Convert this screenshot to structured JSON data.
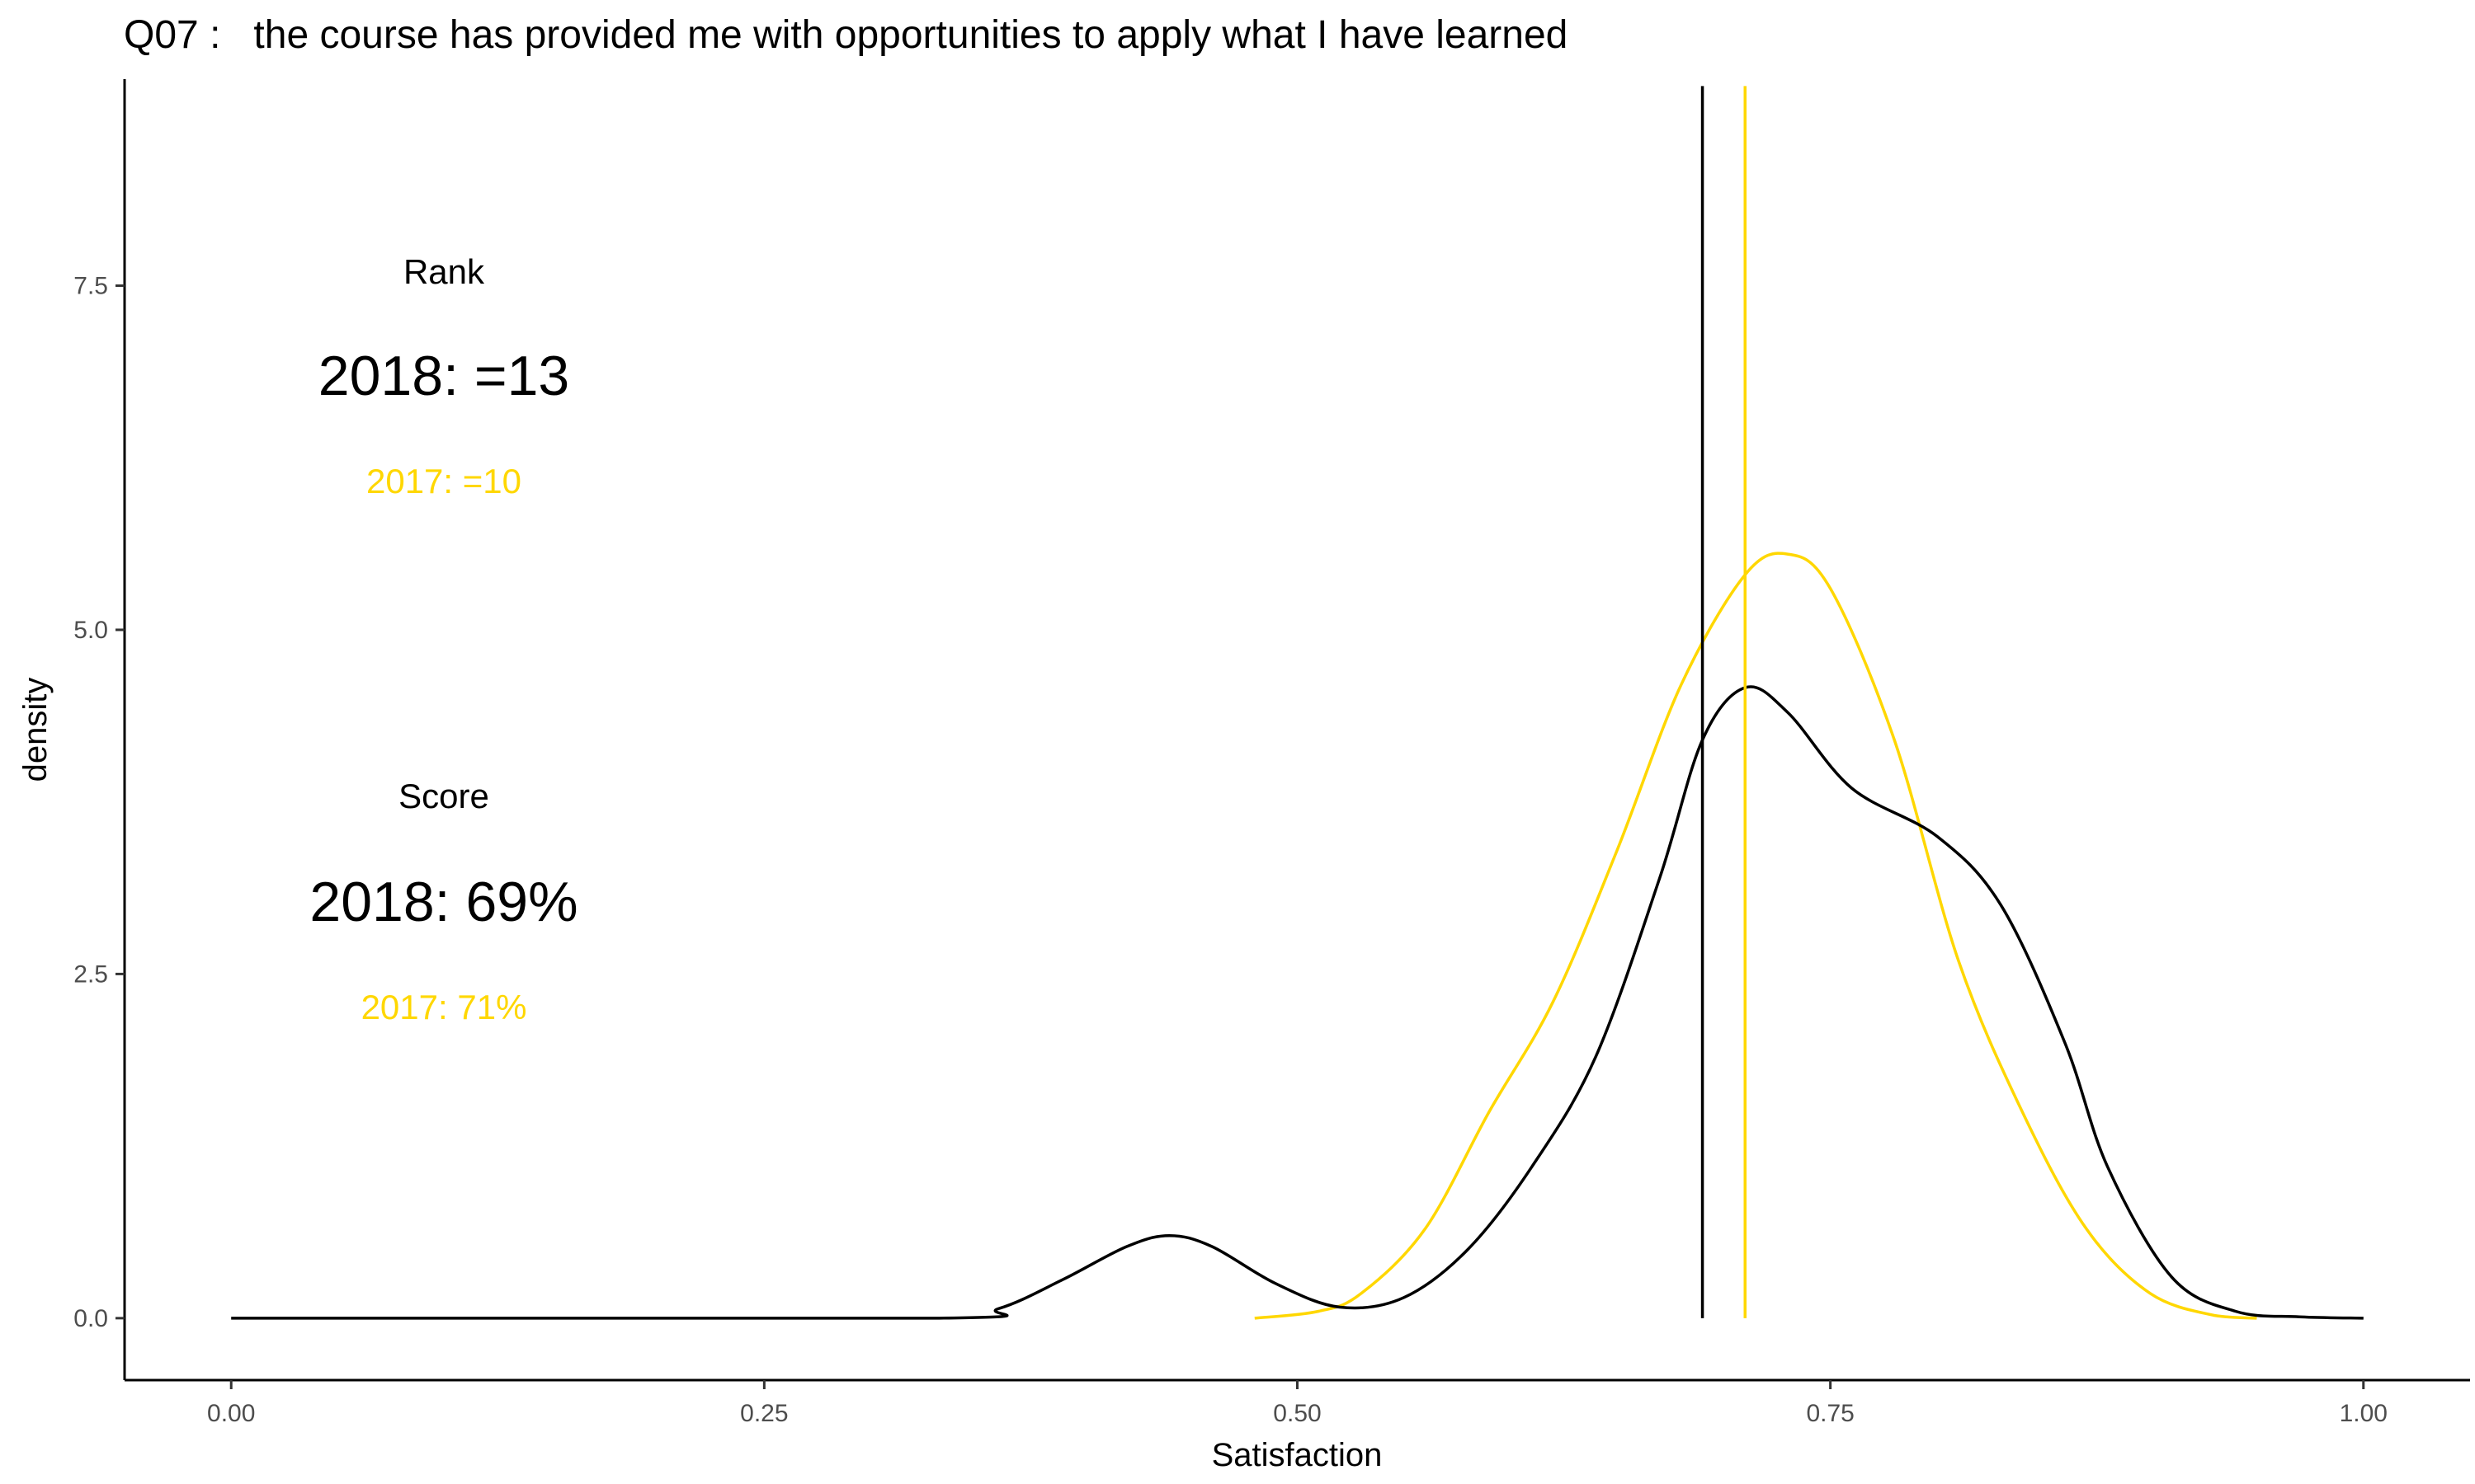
{
  "chart_data": {
    "type": "area",
    "title": "Q07 :   the course has provided me with opportunities to apply what I have learned",
    "xlabel": "Satisfaction",
    "ylabel": "density",
    "xlim": [
      -0.05,
      1.05
    ],
    "ylim": [
      -0.45,
      9.0
    ],
    "x_ticks": [
      0.0,
      0.25,
      0.5,
      0.75,
      1.0
    ],
    "x_tick_labels": [
      "0.00",
      "0.25",
      "0.50",
      "0.75",
      "1.00"
    ],
    "y_ticks": [
      0.0,
      2.5,
      5.0,
      7.5
    ],
    "y_tick_labels": [
      "0.0",
      "2.5",
      "5.0",
      "7.5"
    ],
    "grid": false,
    "series": [
      {
        "name": "2018",
        "color": "#000000",
        "x": [
          0.0,
          0.33,
          0.36,
          0.39,
          0.42,
          0.44,
          0.46,
          0.49,
          0.52,
          0.55,
          0.58,
          0.61,
          0.64,
          0.67,
          0.69,
          0.71,
          0.73,
          0.76,
          0.8,
          0.83,
          0.86,
          0.88,
          0.91,
          0.94,
          0.97,
          1.0
        ],
        "y": [
          0.0,
          0.0,
          0.07,
          0.28,
          0.52,
          0.6,
          0.52,
          0.25,
          0.08,
          0.15,
          0.5,
          1.1,
          1.9,
          3.2,
          4.2,
          4.58,
          4.4,
          3.85,
          3.5,
          3.0,
          2.0,
          1.1,
          0.3,
          0.05,
          0.01,
          0.0
        ]
      },
      {
        "name": "2017",
        "color": "#ffd700",
        "x": [
          0.48,
          0.51,
          0.53,
          0.56,
          0.59,
          0.62,
          0.65,
          0.68,
          0.71,
          0.73,
          0.75,
          0.78,
          0.81,
          0.84,
          0.87,
          0.9,
          0.93,
          0.95
        ],
        "y": [
          0.0,
          0.05,
          0.18,
          0.65,
          1.5,
          2.3,
          3.4,
          4.6,
          5.4,
          5.55,
          5.3,
          4.2,
          2.6,
          1.5,
          0.65,
          0.18,
          0.02,
          0.0
        ]
      }
    ],
    "vlines": [
      {
        "label": "2018",
        "x": 0.69,
        "color": "#000000"
      },
      {
        "label": "2017",
        "x": 0.71,
        "color": "#ffd700"
      }
    ],
    "annotations": {
      "rank_heading": "Rank",
      "rank_2018": "2018: =13",
      "rank_2017": "2017: =10",
      "score_heading": "Score",
      "score_2018": "2018: 69%",
      "score_2017": "2017: 71%",
      "color_current": "#000000",
      "color_previous": "#ffd700"
    }
  }
}
